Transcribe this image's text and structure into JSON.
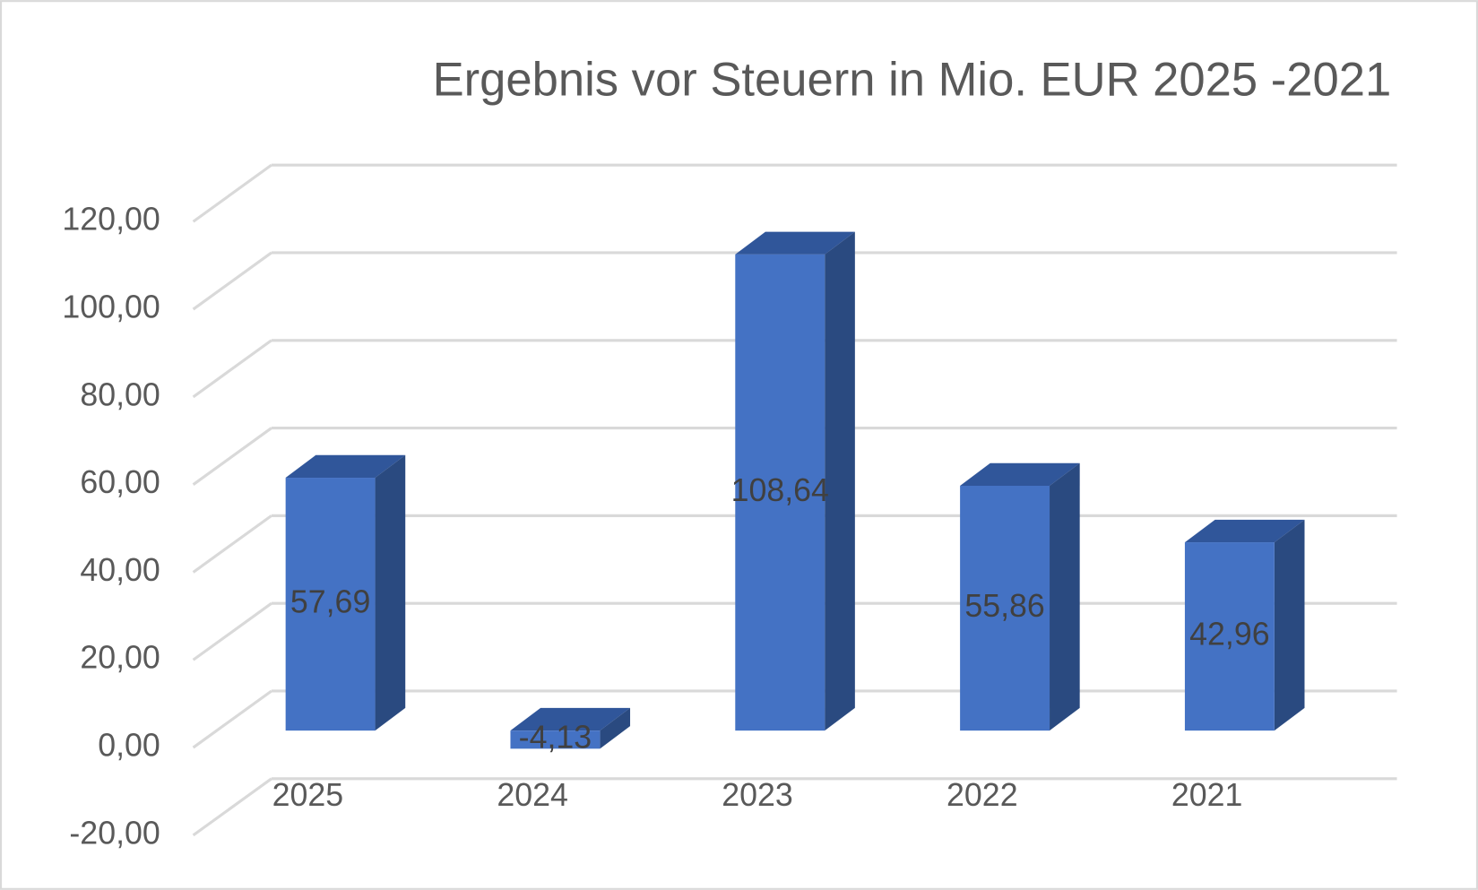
{
  "chart_data": {
    "type": "bar3d",
    "title": "Ergebnis vor Steuern in Mio. EUR 2025 -2021",
    "categories": [
      "2025",
      "2024",
      "2023",
      "2022",
      "2021"
    ],
    "values": [
      57.69,
      -4.13,
      108.64,
      55.86,
      42.96
    ],
    "value_labels": [
      "57,69",
      "-4,13",
      "108,64",
      "55,86",
      "42,96"
    ],
    "color": "#4472c4",
    "ylim": [
      -20,
      120
    ],
    "yticks": [
      {
        "value": -20,
        "label": "-20,00"
      },
      {
        "value": 0,
        "label": "0,00"
      },
      {
        "value": 20,
        "label": "20,00"
      },
      {
        "value": 40,
        "label": "40,00"
      },
      {
        "value": 60,
        "label": "60,00"
      },
      {
        "value": 80,
        "label": "80,00"
      },
      {
        "value": 100,
        "label": "100,00"
      },
      {
        "value": 120,
        "label": "120,00"
      }
    ],
    "grid": true
  }
}
